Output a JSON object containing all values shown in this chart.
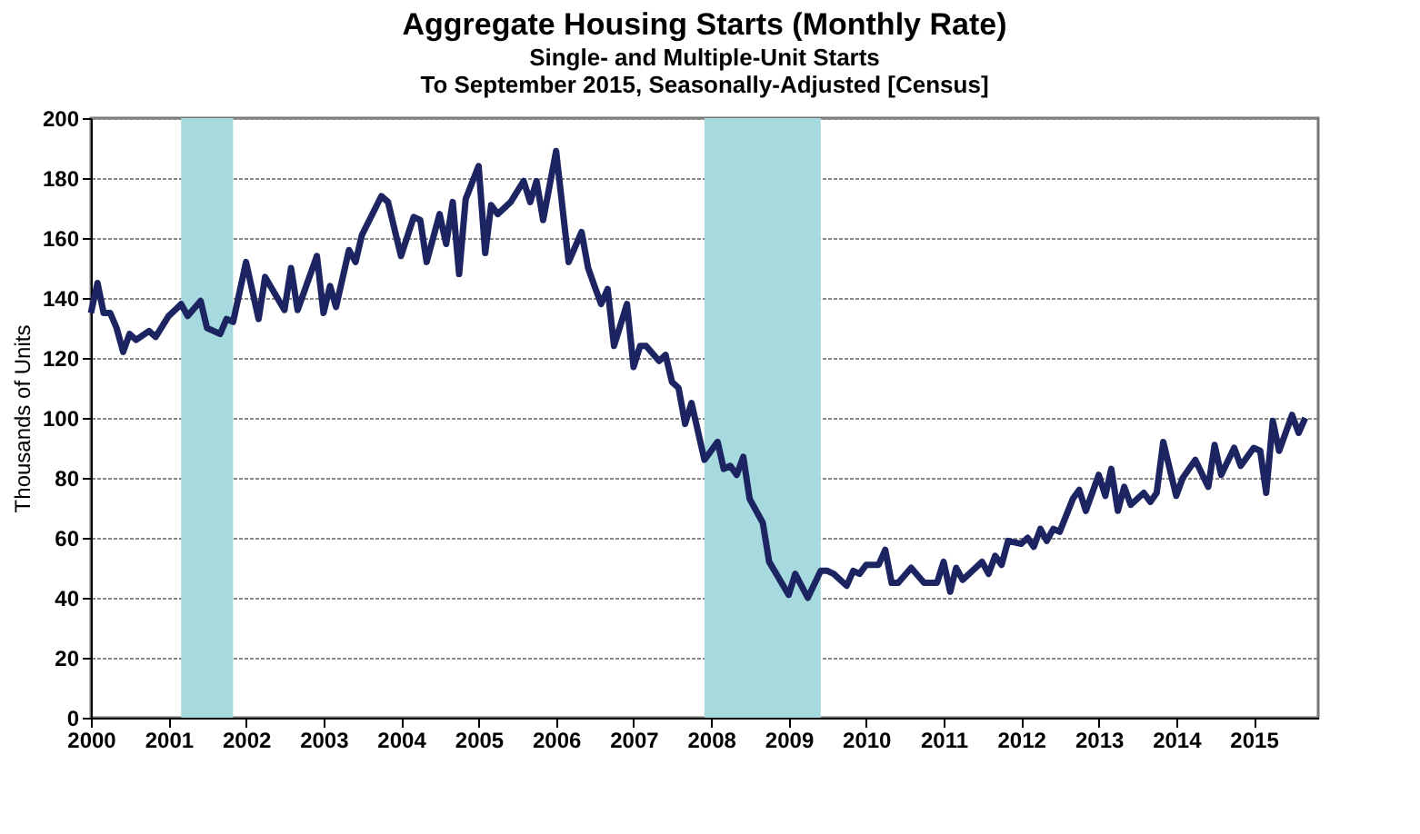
{
  "chart_data": {
    "type": "line",
    "title": "Aggregate Housing Starts (Monthly Rate)",
    "subtitle": "Single- and Multiple-Unit Starts\nTo September 2015, Seasonally-Adjusted [Census]",
    "ylabel": "Thousands of Units",
    "xlim": [
      "2000-01",
      "2015-11"
    ],
    "xticks": [
      "2000",
      "2001",
      "2002",
      "2003",
      "2004",
      "2005",
      "2006",
      "2007",
      "2008",
      "2009",
      "2010",
      "2011",
      "2012",
      "2013",
      "2014",
      "2015"
    ],
    "ylim": [
      0,
      200
    ],
    "yticks": [
      0,
      20,
      40,
      60,
      80,
      100,
      120,
      140,
      160,
      180,
      200
    ],
    "grid": "y",
    "line_style": "solid",
    "marker": "none",
    "bands": [
      {
        "axis": "x",
        "from": "2001-03",
        "to": "2001-11",
        "color": "#a6dade"
      },
      {
        "axis": "x",
        "from": "2007-12",
        "to": "2009-06",
        "color": "#a6dade"
      }
    ],
    "series": [
      {
        "color": "#1c2461",
        "x": [
          "2000-01",
          "2000-02",
          "2000-03",
          "2000-04",
          "2000-05",
          "2000-06",
          "2000-07",
          "2000-08",
          "2000-10",
          "2000-11",
          "2001-01",
          "2001-02",
          "2001-03",
          "2001-04",
          "2001-06",
          "2001-07",
          "2001-09",
          "2001-10",
          "2001-11",
          "2002-01",
          "2002-03",
          "2002-04",
          "2002-07",
          "2002-08",
          "2002-09",
          "2002-12",
          "2003-01",
          "2003-02",
          "2003-03",
          "2003-05",
          "2003-06",
          "2003-07",
          "2003-10",
          "2003-11",
          "2004-01",
          "2004-03",
          "2004-04",
          "2004-05",
          "2004-07",
          "2004-08",
          "2004-09",
          "2004-10",
          "2004-11",
          "2005-01",
          "2005-02",
          "2005-03",
          "2005-04",
          "2005-06",
          "2005-08",
          "2005-09",
          "2005-10",
          "2005-11",
          "2006-01",
          "2006-03",
          "2006-05",
          "2006-06",
          "2006-07",
          "2006-08",
          "2006-09",
          "2006-10",
          "2006-12",
          "2007-01",
          "2007-02",
          "2007-03",
          "2007-05",
          "2007-06",
          "2007-07",
          "2007-08",
          "2007-09",
          "2007-10",
          "2007-12",
          "2008-02",
          "2008-03",
          "2008-04",
          "2008-05",
          "2008-06",
          "2008-07",
          "2008-09",
          "2008-10",
          "2009-01",
          "2009-02",
          "2009-04",
          "2009-06",
          "2009-07",
          "2009-08",
          "2009-10",
          "2009-11",
          "2009-12",
          "2010-01",
          "2010-03",
          "2010-04",
          "2010-05",
          "2010-06",
          "2010-08",
          "2010-10",
          "2010-12",
          "2011-01",
          "2011-02",
          "2011-03",
          "2011-04",
          "2011-07",
          "2011-08",
          "2011-09",
          "2011-10",
          "2011-11",
          "2012-01",
          "2012-02",
          "2012-03",
          "2012-04",
          "2012-05",
          "2012-06",
          "2012-07",
          "2012-09",
          "2012-10",
          "2012-11",
          "2013-01",
          "2013-02",
          "2013-03",
          "2013-04",
          "2013-05",
          "2013-06",
          "2013-08",
          "2013-09",
          "2013-10",
          "2013-11",
          "2014-01",
          "2014-02",
          "2014-04",
          "2014-06",
          "2014-07",
          "2014-08",
          "2014-10",
          "2014-11",
          "2015-01",
          "2015-02",
          "2015-03",
          "2015-04",
          "2015-05",
          "2015-07",
          "2015-08",
          "2015-09"
        ],
        "values": [
          135,
          145,
          135,
          135,
          130,
          122,
          128,
          126,
          129,
          127,
          134,
          136,
          138,
          134,
          139,
          130,
          128,
          133,
          132,
          152,
          133,
          147,
          136,
          150,
          136,
          154,
          135,
          144,
          137,
          156,
          152,
          161,
          174,
          172,
          154,
          167,
          166,
          152,
          168,
          158,
          172,
          148,
          173,
          184,
          155,
          171,
          168,
          172,
          179,
          172,
          179,
          166,
          189,
          152,
          162,
          150,
          144,
          138,
          143,
          124,
          138,
          117,
          124,
          124,
          119,
          121,
          112,
          110,
          98,
          105,
          86,
          92,
          83,
          84,
          81,
          87,
          73,
          65,
          52,
          41,
          48,
          40,
          49,
          49,
          48,
          44,
          49,
          48,
          51,
          51,
          56,
          45,
          45,
          50,
          45,
          45,
          52,
          42,
          50,
          46,
          52,
          48,
          54,
          51,
          59,
          58,
          60,
          57,
          63,
          59,
          63,
          62,
          73,
          76,
          69,
          81,
          74,
          83,
          69,
          77,
          71,
          75,
          72,
          75,
          92,
          74,
          80,
          86,
          77,
          91,
          81,
          90,
          84,
          90,
          89,
          75,
          99,
          89,
          101,
          95,
          100
        ]
      }
    ]
  }
}
